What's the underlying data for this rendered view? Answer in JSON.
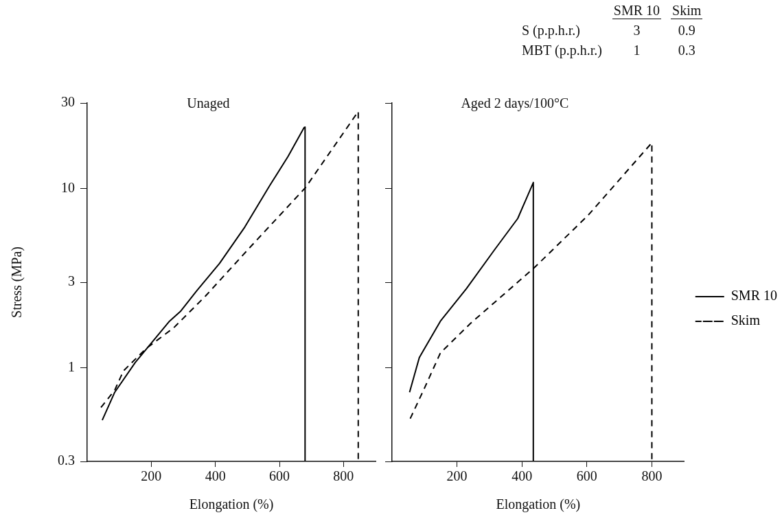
{
  "chart_data": [
    {
      "type": "other",
      "categories": [
        "SMR 10",
        "Skim"
      ],
      "y_categories": [
        "S (p.p.h.r.)",
        "MBT (p.p.h.r.)"
      ],
      "cell_labels": [
        [
          "3",
          "0.9"
        ],
        [
          "1",
          "0.3"
        ]
      ]
    },
    {
      "type": "line",
      "title": "Unaged",
      "xlabel": "Elongation (%)",
      "ylabel": "Stress (MPa)",
      "log": "y",
      "xlim": [
        0,
        900
      ],
      "xticks": [
        200,
        400,
        600,
        800
      ],
      "ylim": [
        0.3,
        30
      ],
      "yticks": [
        0.3,
        1,
        3,
        10,
        30
      ],
      "marker": "none",
      "series": [
        {
          "color": "#000000",
          "line_style": "solid",
          "x": [
            47,
            86,
            150,
            257,
            291,
            342,
            413,
            492,
            570,
            627,
            677,
            680,
            680
          ],
          "values": [
            0.51,
            0.73,
            1.07,
            1.82,
            2.06,
            2.69,
            3.82,
            6.1,
            10.4,
            15.1,
            21.9,
            22,
            0.3
          ]
        },
        {
          "color": "#000000",
          "line_style": "dashed",
          "x": [
            43,
            86,
            113,
            184,
            270,
            370,
            513,
            681,
            846,
            846
          ],
          "values": [
            0.6,
            0.75,
            0.96,
            1.28,
            1.67,
            2.52,
            4.8,
            10.1,
            26.9,
            0.3
          ]
        }
      ]
    },
    {
      "type": "line",
      "title": "Aged 2 days/100°C",
      "xlabel": "Elongation (%)",
      "log": "y",
      "xlim": [
        0,
        900
      ],
      "xticks": [
        200,
        400,
        600,
        800
      ],
      "ylim": [
        0.3,
        30
      ],
      "yticks": [
        0.3,
        1,
        3,
        10,
        30
      ],
      "tick_labels": "x",
      "marker": "none",
      "legend": "right",
      "series": [
        {
          "name": "SMR 10",
          "color": "#000000",
          "line_style": "solid",
          "x": [
            54,
            84,
            149,
            229,
            316,
            387,
            435,
            435
          ],
          "values": [
            0.73,
            1.14,
            1.82,
            2.76,
            4.56,
            6.8,
            10.8,
            0.3
          ]
        },
        {
          "name": "Skim",
          "color": "#000000",
          "line_style": "dashed",
          "x": [
            56,
            100,
            149,
            242,
            437,
            604,
            800,
            800
          ],
          "values": [
            0.52,
            0.77,
            1.21,
            1.77,
            3.6,
            7.1,
            18,
            0.3
          ]
        }
      ]
    }
  ]
}
